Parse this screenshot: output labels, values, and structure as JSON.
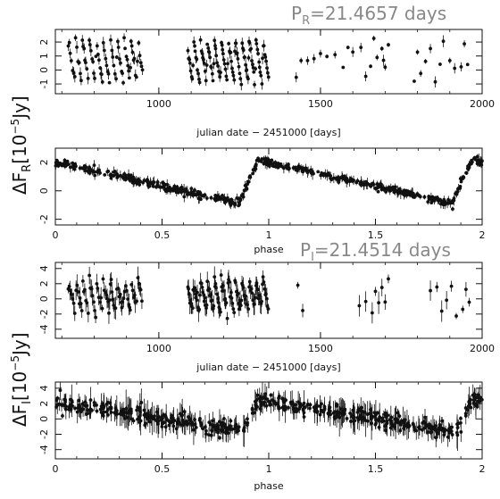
{
  "figure": {
    "period_r": {
      "prefix": "P",
      "sub": "R",
      "value": "=21.4657 days"
    },
    "period_i": {
      "prefix": "P",
      "sub": "I",
      "value": "=21.4514 days"
    },
    "ylabel_r": {
      "delta": "ΔF",
      "sub": "R",
      "bracket_open": "[10",
      "exp": "−5",
      "unit": "Jy]"
    },
    "ylabel_i": {
      "delta": "ΔF",
      "sub": "I",
      "bracket_open": "[10",
      "exp": "−5",
      "unit": "Jy]"
    }
  },
  "chart_data": [
    {
      "id": "r-time",
      "type": "scatter",
      "band": "R",
      "title": "",
      "xlabel": "julian date − 2451000 [days]",
      "ylabel": "",
      "xlim": [
        680,
        2000
      ],
      "ylim": [
        -1.7,
        2.9
      ],
      "xticks": [
        1000,
        1500,
        2000
      ],
      "xtick_labels": [
        "1000",
        "1500",
        "2000"
      ],
      "yticks": [
        -1,
        0,
        1,
        2
      ],
      "ytick_labels": [
        "-1",
        "0",
        "1",
        "2"
      ],
      "period": 21.4657,
      "phase_ref": 700,
      "lightcurve": "r",
      "noise": 0.14,
      "err": [
        0.1,
        0.45
      ],
      "sampling": {
        "dense_segments": [
          [
            720,
            950,
            3.0
          ],
          [
            1090,
            1340,
            2.2
          ]
        ],
        "sparse_points": [
          1425,
          1440,
          1460,
          1480,
          1500,
          1520,
          1545,
          1570,
          1585,
          1600,
          1625,
          1640,
          1655,
          1665,
          1675,
          1690,
          1695,
          1700,
          1710,
          1790,
          1800,
          1810,
          1825,
          1840,
          1855,
          1870,
          1880,
          1900,
          1915,
          1935,
          1945,
          1955
        ]
      }
    },
    {
      "id": "r-phase",
      "type": "scatter",
      "band": "R",
      "title": "",
      "xlabel": "phase",
      "ylabel": "",
      "xlim": [
        0,
        2
      ],
      "ylim": [
        -2.4,
        3.0
      ],
      "xticks": [
        0,
        0.5,
        1,
        1.5,
        2
      ],
      "xtick_labels": [
        "0",
        "0.5",
        "1",
        "1.5",
        "2"
      ],
      "yticks": [
        -2,
        0,
        2
      ],
      "ytick_labels": [
        "-2",
        "0",
        "2"
      ],
      "lightcurve": "r",
      "n_points": 300,
      "noise": 0.13,
      "err": [
        0.1,
        0.35
      ]
    },
    {
      "id": "i-time",
      "type": "scatter",
      "band": "I",
      "title": "",
      "xlabel": "julian date − 2451000 [days]",
      "ylabel": "",
      "xlim": [
        680,
        2000
      ],
      "ylim": [
        -5.2,
        4.8
      ],
      "xticks": [
        1000,
        1500,
        2000
      ],
      "xtick_labels": [
        "1000",
        "1500",
        "2000"
      ],
      "yticks": [
        -4,
        -2,
        0,
        2,
        4
      ],
      "ytick_labels": [
        "-4",
        "-2",
        "0",
        "2",
        "4"
      ],
      "period": 21.4514,
      "phase_ref": 700,
      "lightcurve": "i",
      "noise": 0.45,
      "err": [
        0.4,
        1.5
      ],
      "sampling": {
        "dense_segments": [
          [
            720,
            950,
            3.0
          ],
          [
            1090,
            1340,
            2.2
          ]
        ],
        "sparse_points": [
          1430,
          1445,
          1620,
          1640,
          1660,
          1670,
          1680,
          1690,
          1700,
          1710,
          1840,
          1860,
          1875,
          1890,
          1905,
          1920,
          1940,
          1950,
          1960
        ]
      }
    },
    {
      "id": "i-phase",
      "type": "scatter",
      "band": "I",
      "title": "",
      "xlabel": "phase",
      "ylabel": "",
      "xlim": [
        0,
        2
      ],
      "ylim": [
        -5.2,
        4.8
      ],
      "xticks": [
        0,
        0.5,
        1,
        1.5,
        2
      ],
      "xtick_labels": [
        "0",
        "0.5",
        "1",
        "1.5",
        "2"
      ],
      "yticks": [
        -4,
        -2,
        0,
        2,
        4
      ],
      "ytick_labels": [
        "-4",
        "-2",
        "0",
        "2",
        "4"
      ],
      "lightcurve": "i",
      "n_points": 300,
      "noise": 0.5,
      "err": [
        0.3,
        1.8
      ]
    }
  ]
}
